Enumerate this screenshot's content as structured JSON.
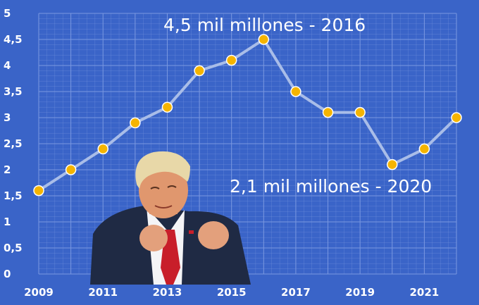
{
  "chart_data": {
    "type": "line",
    "x": [
      2009,
      2010,
      2011,
      2012,
      2013,
      2014,
      2015,
      2016,
      2017,
      2018,
      2019,
      2020,
      2021,
      2022
    ],
    "values": [
      1.6,
      2.0,
      2.4,
      2.9,
      3.2,
      3.9,
      4.1,
      4.5,
      3.5,
      3.1,
      3.1,
      2.1,
      2.4,
      3.0
    ],
    "x_tick_labels": [
      "2009",
      "2011",
      "2013",
      "2015",
      "2017",
      "2019",
      "2021"
    ],
    "y_tick_labels": [
      "0",
      "0,5",
      "1",
      "1,5",
      "2",
      "2,5",
      "3",
      "3,5",
      "4",
      "4,5",
      "5"
    ],
    "xlim": [
      2009,
      2022
    ],
    "ylim": [
      0,
      5
    ],
    "grid": true,
    "annotations": [
      {
        "text": "4,5 mil millones - 2016",
        "x": 2016,
        "y": 4.5
      },
      {
        "text": "2,1 mil millones - 2020",
        "x": 2020,
        "y": 2.1
      }
    ],
    "colors": {
      "background": "#3a64c8",
      "grid": "#7a98e0",
      "line": "#a9bde8",
      "marker_fill": "#f5b400",
      "marker_stroke": "#ffffff",
      "text": "#ffffff"
    }
  },
  "photo": {
    "subject": "man in dark suit and red tie with raised fists"
  }
}
